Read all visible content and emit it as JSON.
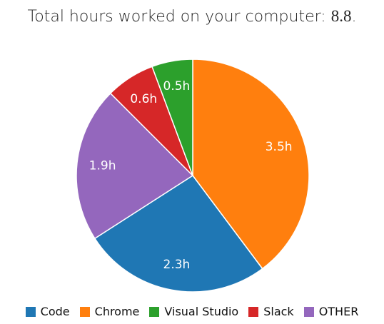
{
  "chart_data": {
    "type": "pie",
    "title": "Total hours worked on your computer:",
    "total": 8.8,
    "title_end": ".",
    "categories": [
      "Chrome",
      "Code",
      "OTHER",
      "Slack",
      "Visual Studio"
    ],
    "values": [
      3.5,
      2.3,
      1.9,
      0.6,
      0.5
    ],
    "value_labels": [
      "3.5h",
      "2.3h",
      "1.9h",
      "0.6h",
      "0.5h"
    ],
    "colors": [
      "#ff7f0e",
      "#1f77b4",
      "#9467bd",
      "#d62728",
      "#2ca02c"
    ],
    "legend": "bottom"
  }
}
